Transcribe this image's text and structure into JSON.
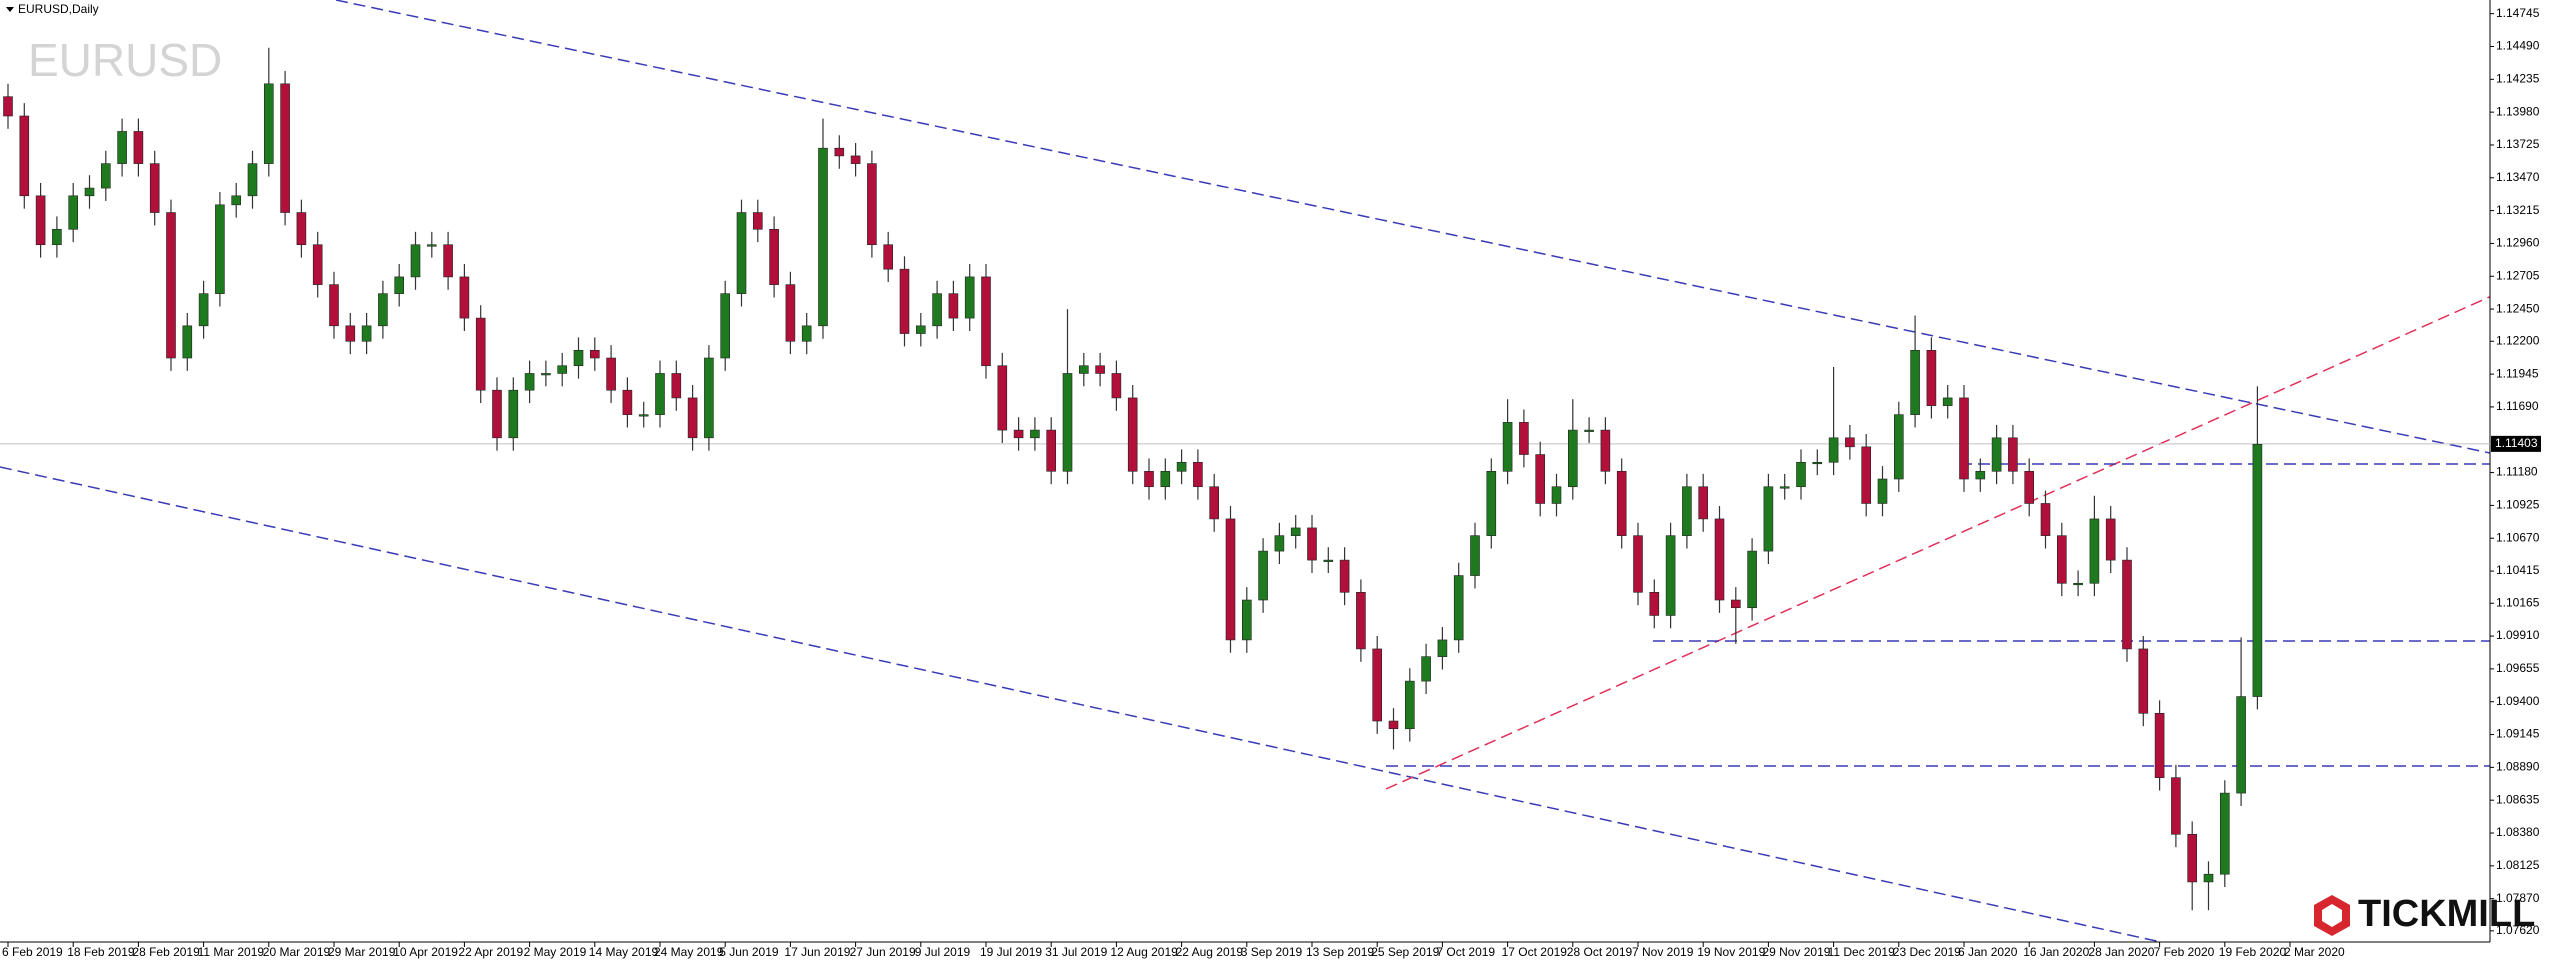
{
  "chart_data": {
    "type": "candlestick",
    "title": "EURUSD,Daily",
    "watermark": "EURUSD",
    "brand": "TICKMILL",
    "up_color": "#1f7a1f",
    "down_color": "#b0103a",
    "current_price": 1.11403,
    "ylim": [
      1.0758,
      1.1482
    ],
    "yticks": [
      1.14745,
      {
        "value": 1.1449,
        "label": "1.14490"
      },
      1.14235,
      {
        "value": 1.1398,
        "label": "1.13980"
      },
      1.13725,
      {
        "value": 1.1347,
        "label": "1.13470"
      },
      1.13215,
      {
        "value": 1.1296,
        "label": "1.12960"
      },
      1.12705,
      {
        "value": 1.1245,
        "label": "1.12450"
      },
      {
        "value": 1.122,
        "label": "1.12200"
      },
      1.11945,
      {
        "value": 1.1169,
        "label": "1.11690"
      },
      {
        "value": 1.1118,
        "label": "1.11180"
      },
      1.10925,
      {
        "value": 1.1067,
        "label": "1.10670"
      },
      1.10415,
      1.10165,
      {
        "value": 1.0991,
        "label": "1.09910"
      },
      1.09655,
      {
        "value": 1.094,
        "label": "1.09400"
      },
      1.09145,
      {
        "value": 1.0889,
        "label": "1.08890"
      },
      1.08635,
      {
        "value": 1.0838,
        "label": "1.08380"
      },
      1.08125,
      {
        "value": 1.0787,
        "label": "1.07870"
      },
      {
        "value": 1.0762,
        "label": "1.07620"
      }
    ],
    "x_labels": [
      "6 Feb 2019",
      "18 Feb 2019",
      "28 Feb 2019",
      "11 Mar 2019",
      "20 Mar 2019",
      "29 Mar 2019",
      "10 Apr 2019",
      "22 Apr 2019",
      "2 May 2019",
      "14 May 2019",
      "24 May 2019",
      "5 Jun 2019",
      "17 Jun 2019",
      "27 Jun 2019",
      "9 Jul 2019",
      "19 Jul 2019",
      "31 Jul 2019",
      "12 Aug 2019",
      "22 Aug 2019",
      "3 Sep 2019",
      "13 Sep 2019",
      "25 Sep 2019",
      "7 Oct 2019",
      "17 Oct 2019",
      "28 Oct 2019",
      "7 Nov 2019",
      "19 Nov 2019",
      "29 Nov 2019",
      "11 Dec 2019",
      "23 Dec 2019",
      "6 Jan 2020",
      "16 Jan 2020",
      "28 Jan 2020",
      "7 Feb 2020",
      "19 Feb 2020",
      "2 Mar 2020"
    ],
    "open": [
      1.141,
      1.1395,
      1.1333,
      1.1295,
      1.1307,
      1.1333,
      1.1339,
      1.1358,
      1.1383,
      1.1358,
      1.132,
      1.1207,
      1.1232,
      1.1257,
      1.1326,
      1.1333,
      1.1358,
      1.142,
      1.132,
      1.1295,
      1.1264,
      1.1232,
      1.122,
      1.1232,
      1.1257,
      1.127,
      1.1295,
      1.1295,
      1.127,
      1.1238,
      1.1182,
      1.1145,
      1.1182,
      1.1195,
      1.1195,
      1.1201,
      1.1213,
      1.1207,
      1.1182,
      1.1163,
      1.1163,
      1.1195,
      1.1176,
      1.1145,
      1.1207,
      1.1257,
      1.132,
      1.1307,
      1.1264,
      1.122,
      1.1232,
      1.137,
      1.1364,
      1.1358,
      1.1295,
      1.1276,
      1.1226,
      1.1232,
      1.1257,
      1.1238,
      1.127,
      1.1201,
      1.1151,
      1.1145,
      1.1151,
      1.1119,
      1.1195,
      1.1201,
      1.1195,
      1.1176,
      1.1119,
      1.1107,
      1.1119,
      1.1126,
      1.1107,
      1.1082,
      1.0988,
      1.1019,
      1.1057,
      1.1069,
      1.1075,
      1.105,
      1.105,
      1.1025,
      1.0981,
      1.0925,
      1.0919,
      1.0956,
      1.0975,
      1.0988,
      1.1038,
      1.1069,
      1.1119,
      1.1157,
      1.1132,
      1.1094,
      1.1107,
      1.1151,
      1.1151,
      1.1119,
      1.1069,
      1.1025,
      1.1007,
      1.1069,
      1.1107,
      1.1082,
      1.1019,
      1.1013,
      1.1057,
      1.1107,
      1.1107,
      1.1126,
      1.1126,
      1.1145,
      1.1138,
      1.1094,
      1.1113,
      1.1163,
      1.1213,
      1.117,
      1.1176,
      1.1113,
      1.1119,
      1.1145,
      1.1119,
      1.1094,
      1.1069,
      1.1032,
      1.1032,
      1.1082,
      1.105,
      1.0981,
      1.0931,
      1.0881,
      1.0837,
      1.08,
      1.0806,
      1.0869,
      1.0944
    ],
    "high": [
      1.142,
      1.1405,
      1.1343,
      1.1317,
      1.1343,
      1.1349,
      1.1368,
      1.1393,
      1.1393,
      1.1368,
      1.133,
      1.1242,
      1.1267,
      1.1336,
      1.1343,
      1.1368,
      1.1448,
      1.143,
      1.133,
      1.1305,
      1.1274,
      1.1242,
      1.1242,
      1.1267,
      1.128,
      1.1305,
      1.1305,
      1.1305,
      1.128,
      1.1248,
      1.1192,
      1.1192,
      1.1205,
      1.1205,
      1.1211,
      1.1223,
      1.1223,
      1.1217,
      1.1192,
      1.1173,
      1.1205,
      1.1205,
      1.1186,
      1.1217,
      1.1267,
      1.133,
      1.133,
      1.1317,
      1.1274,
      1.1242,
      1.1393,
      1.138,
      1.1374,
      1.1368,
      1.1305,
      1.1286,
      1.1242,
      1.1267,
      1.1267,
      1.128,
      1.128,
      1.1211,
      1.1161,
      1.1161,
      1.1161,
      1.1245,
      1.1211,
      1.1211,
      1.1205,
      1.1186,
      1.1129,
      1.1129,
      1.1136,
      1.1136,
      1.1117,
      1.1092,
      1.1029,
      1.1067,
      1.1079,
      1.1085,
      1.1085,
      1.106,
      1.106,
      1.1035,
      1.0991,
      1.0935,
      1.0966,
      1.0985,
      1.0998,
      1.1048,
      1.1079,
      1.1129,
      1.1175,
      1.1167,
      1.1142,
      1.1117,
      1.1175,
      1.1161,
      1.1161,
      1.1129,
      1.1079,
      1.1035,
      1.1079,
      1.1117,
      1.1117,
      1.1092,
      1.1029,
      1.1067,
      1.1117,
      1.1117,
      1.1136,
      1.1136,
      1.12,
      1.1155,
      1.1148,
      1.1123,
      1.1173,
      1.124,
      1.1223,
      1.1186,
      1.1186,
      1.1129,
      1.1155,
      1.1155,
      1.1129,
      1.1104,
      1.1079,
      1.1042,
      1.11,
      1.1092,
      1.106,
      1.0991,
      1.0941,
      1.0891,
      1.0847,
      1.0816,
      1.0879,
      1.099,
      1.1185
    ],
    "low": [
      1.1385,
      1.1323,
      1.1285,
      1.1285,
      1.1297,
      1.1323,
      1.1329,
      1.1348,
      1.1348,
      1.131,
      1.1197,
      1.1197,
      1.1222,
      1.1247,
      1.1316,
      1.1323,
      1.1348,
      1.131,
      1.1285,
      1.1254,
      1.1222,
      1.121,
      1.121,
      1.1222,
      1.1247,
      1.126,
      1.1285,
      1.126,
      1.1228,
      1.1172,
      1.1135,
      1.1135,
      1.1172,
      1.1185,
      1.1185,
      1.1191,
      1.1197,
      1.1172,
      1.1153,
      1.1153,
      1.1153,
      1.1166,
      1.1135,
      1.1135,
      1.1197,
      1.1247,
      1.1297,
      1.1254,
      1.121,
      1.121,
      1.1222,
      1.1354,
      1.1348,
      1.1285,
      1.1266,
      1.1216,
      1.1216,
      1.1222,
      1.1228,
      1.1228,
      1.1191,
      1.1141,
      1.1135,
      1.1135,
      1.1109,
      1.1109,
      1.1185,
      1.1185,
      1.1166,
      1.1109,
      1.1097,
      1.1097,
      1.1109,
      1.1097,
      1.1072,
      1.0978,
      1.0978,
      1.1009,
      1.1047,
      1.1059,
      1.104,
      1.104,
      1.1015,
      1.0971,
      1.0915,
      1.0903,
      1.0909,
      1.0946,
      1.0965,
      1.0978,
      1.1028,
      1.1059,
      1.1109,
      1.1122,
      1.1084,
      1.1084,
      1.1097,
      1.1141,
      1.1109,
      1.1059,
      1.1015,
      1.0997,
      1.0997,
      1.1059,
      1.1072,
      1.1009,
      1.0985,
      1.1003,
      1.1047,
      1.1097,
      1.1097,
      1.1116,
      1.1116,
      1.1128,
      1.1084,
      1.1084,
      1.1103,
      1.1153,
      1.116,
      1.116,
      1.1103,
      1.1103,
      1.1109,
      1.1109,
      1.1084,
      1.1059,
      1.1022,
      1.1022,
      1.1022,
      1.104,
      1.0971,
      1.0921,
      1.0871,
      1.0827,
      1.0778,
      1.0778,
      1.0796,
      1.0859,
      1.0934
    ],
    "close": [
      1.1395,
      1.1333,
      1.1295,
      1.1307,
      1.1333,
      1.1339,
      1.1358,
      1.1383,
      1.1358,
      1.132,
      1.1207,
      1.1232,
      1.1257,
      1.1326,
      1.1333,
      1.1358,
      1.142,
      1.132,
      1.1295,
      1.1264,
      1.1232,
      1.122,
      1.1232,
      1.1257,
      1.127,
      1.1295,
      1.1295,
      1.127,
      1.1238,
      1.1182,
      1.1145,
      1.1182,
      1.1195,
      1.1195,
      1.1201,
      1.1213,
      1.1207,
      1.1182,
      1.1163,
      1.1163,
      1.1195,
      1.1176,
      1.1145,
      1.1207,
      1.1257,
      1.132,
      1.1307,
      1.1264,
      1.122,
      1.1232,
      1.137,
      1.1364,
      1.1358,
      1.1295,
      1.1276,
      1.1226,
      1.1232,
      1.1257,
      1.1238,
      1.127,
      1.1201,
      1.1151,
      1.1145,
      1.1151,
      1.1119,
      1.1195,
      1.1201,
      1.1195,
      1.1176,
      1.1119,
      1.1107,
      1.1119,
      1.1126,
      1.1107,
      1.1082,
      1.0988,
      1.1019,
      1.1057,
      1.1069,
      1.1075,
      1.105,
      1.105,
      1.1025,
      1.0981,
      1.0925,
      1.0919,
      1.0956,
      1.0975,
      1.0988,
      1.1038,
      1.1069,
      1.1119,
      1.1157,
      1.1132,
      1.1094,
      1.1107,
      1.1151,
      1.1151,
      1.1119,
      1.1069,
      1.1025,
      1.1007,
      1.1069,
      1.1107,
      1.1082,
      1.1019,
      1.1013,
      1.1057,
      1.1107,
      1.1107,
      1.1126,
      1.1126,
      1.1145,
      1.1138,
      1.1094,
      1.1113,
      1.1163,
      1.1213,
      1.117,
      1.1176,
      1.1113,
      1.1119,
      1.1145,
      1.1119,
      1.1094,
      1.1069,
      1.1032,
      1.1032,
      1.1082,
      1.105,
      1.0981,
      1.0931,
      1.0881,
      1.0837,
      1.08,
      1.0806,
      1.0869,
      1.0944,
      1.114
    ]
  }
}
